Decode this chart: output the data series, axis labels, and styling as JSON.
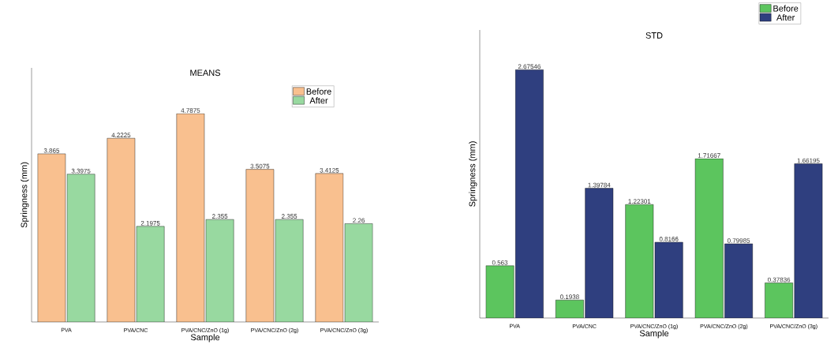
{
  "chart_data": [
    {
      "type": "bar",
      "title": "MEANS",
      "xlabel": "Sample",
      "ylabel": "Springness (mm)",
      "categories": [
        "PVA",
        "PVA/CNC",
        "PVA/CNC/ZnO (1g)",
        "PVA/CNC/ZnO (2g)",
        "PVA/CNC/ZnO (3g)"
      ],
      "series": [
        {
          "name": "Before",
          "color": "#f9c08f",
          "values": [
            3.865,
            4.2225,
            4.7875,
            3.5075,
            3.4125
          ]
        },
        {
          "name": "After",
          "color": "#98d9a0",
          "values": [
            3.3975,
            2.1975,
            2.355,
            2.355,
            2.26
          ]
        }
      ],
      "data_labels": true,
      "legend": "top right"
    },
    {
      "type": "bar",
      "title": "STD",
      "xlabel": "Sample",
      "ylabel": "Springness (mm)",
      "categories": [
        "PVA",
        "PVA/CNC",
        "PVA/CNC/ZnO (1g)",
        "PVA/CNC/ZnO (2g)",
        "PVA/CNC/ZnO (3g)"
      ],
      "series": [
        {
          "name": "Before",
          "color": "#5cc55e",
          "values": [
            0.563,
            0.1938,
            1.22301,
            1.71667,
            0.37836
          ]
        },
        {
          "name": "After",
          "color": "#2f3f7f",
          "values": [
            2.67546,
            1.39784,
            0.8166,
            0.79985,
            1.66195
          ]
        }
      ],
      "data_labels": true,
      "legend": "top right"
    }
  ]
}
